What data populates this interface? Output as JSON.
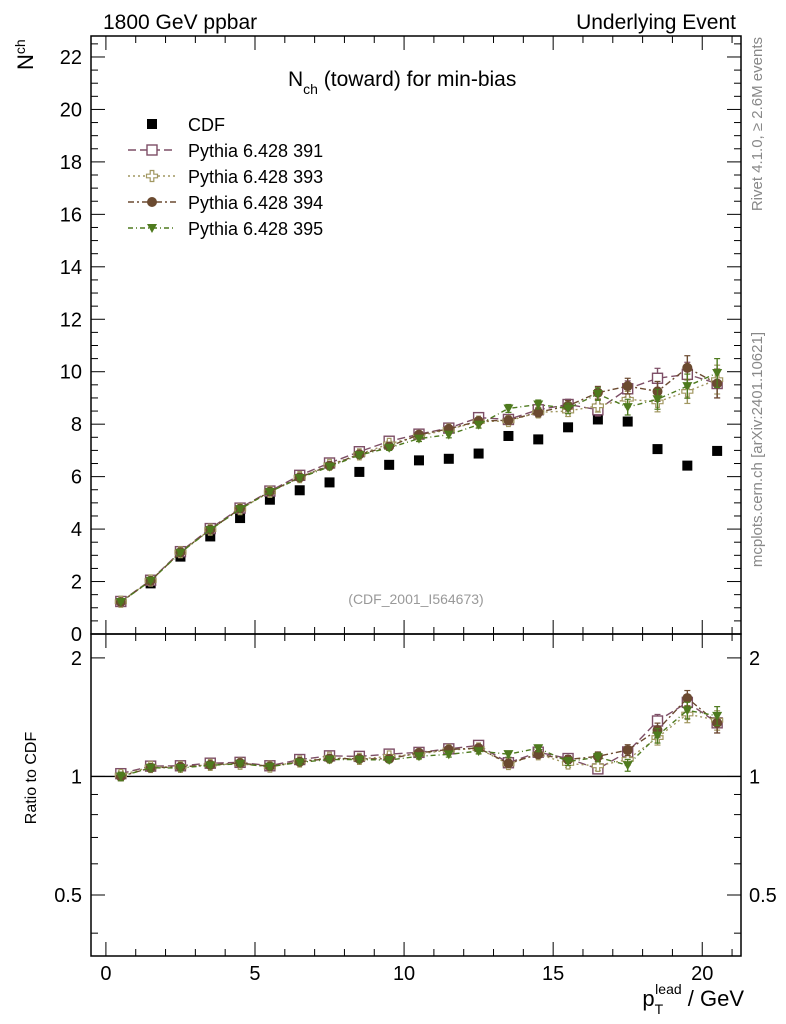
{
  "header": {
    "left": "1800 GeV ppbar",
    "right": "Underlying Event"
  },
  "side_labels": {
    "rivet": "Rivet 4.1.0, ≥ 2.6M events",
    "mcplots": "mcplots.cern.ch [arXiv:2401.10621]"
  },
  "chart_data": {
    "type": "scatter",
    "title_main": "N",
    "title_sub": "ch",
    "title_rest": " (toward) for min-bias",
    "watermark": "(CDF_2001_I564673)",
    "xlabel_main": "p",
    "xlabel_sub": "T",
    "xlabel_sup": "lead",
    "xlabel_rest": " / GeV",
    "ylabel_main": "N",
    "ylabel_sub": "ch",
    "ratio_ylabel": "Ratio to CDF",
    "xlim": [
      -0.5,
      21.3
    ],
    "ylim": [
      0,
      22.8
    ],
    "ratio_ylim": [
      0.35,
      2.3
    ],
    "x_ticks": [
      0,
      5,
      10,
      15,
      20
    ],
    "x_tick_labels": [
      "0",
      "5",
      "10",
      "15",
      "20"
    ],
    "y_ticks": [
      0,
      2,
      4,
      6,
      8,
      10,
      12,
      14,
      16,
      18,
      20,
      22
    ],
    "y_tick_labels": [
      "0",
      "2",
      "4",
      "6",
      "8",
      "10",
      "12",
      "14",
      "16",
      "18",
      "20",
      "22"
    ],
    "ratio_ticks": [
      0.5,
      1,
      2
    ],
    "ratio_tick_labels": [
      "0.5",
      "1",
      "2"
    ],
    "x": [
      0.5,
      1.5,
      2.5,
      3.5,
      4.5,
      5.5,
      6.5,
      7.5,
      8.5,
      9.5,
      10.5,
      11.5,
      12.5,
      13.5,
      14.5,
      15.5,
      16.5,
      17.5,
      18.5,
      19.5,
      20.5
    ],
    "data": {
      "name": "CDF",
      "color": "#000000",
      "values": [
        1.22,
        1.93,
        2.95,
        3.72,
        4.42,
        5.12,
        5.48,
        5.78,
        6.18,
        6.45,
        6.62,
        6.68,
        6.88,
        7.55,
        7.42,
        7.88,
        8.18,
        8.1,
        7.05,
        6.42,
        6.98
      ]
    },
    "series": [
      {
        "name": "Pythia 6.428 391",
        "color": "#7d4e66",
        "marker": "open-square",
        "dash": "8,4",
        "values": [
          1.24,
          2.05,
          3.14,
          4.02,
          4.8,
          5.45,
          6.05,
          6.52,
          6.95,
          7.35,
          7.62,
          7.85,
          8.25,
          8.18,
          8.55,
          8.75,
          8.55,
          9.35,
          9.75,
          9.9,
          9.55
        ],
        "errors": [
          0.03,
          0.04,
          0.05,
          0.05,
          0.06,
          0.07,
          0.08,
          0.09,
          0.1,
          0.1,
          0.11,
          0.12,
          0.13,
          0.15,
          0.17,
          0.2,
          0.24,
          0.3,
          0.38,
          0.46,
          0.55
        ]
      },
      {
        "name": "Pythia 6.428 393",
        "color": "#a19760",
        "marker": "open-cross",
        "dash": "2,3",
        "values": [
          1.23,
          2.04,
          3.12,
          3.98,
          4.76,
          5.42,
          5.98,
          6.45,
          6.85,
          7.25,
          7.55,
          7.8,
          8.1,
          8.12,
          8.45,
          8.5,
          8.7,
          8.95,
          8.85,
          9.25,
          9.7
        ],
        "errors": [
          0.03,
          0.04,
          0.05,
          0.05,
          0.06,
          0.07,
          0.08,
          0.09,
          0.1,
          0.1,
          0.11,
          0.12,
          0.13,
          0.15,
          0.17,
          0.2,
          0.24,
          0.3,
          0.38,
          0.46,
          0.55
        ]
      },
      {
        "name": "Pythia 6.428 394",
        "color": "#6b4a30",
        "marker": "filled-circle",
        "dash": "6,3,2,3",
        "values": [
          1.22,
          2.03,
          3.12,
          3.98,
          4.78,
          5.43,
          5.97,
          6.42,
          6.85,
          7.15,
          7.6,
          7.82,
          8.12,
          8.15,
          8.45,
          8.7,
          9.2,
          9.45,
          9.25,
          10.15,
          9.55
        ],
        "errors": [
          0.03,
          0.04,
          0.05,
          0.05,
          0.06,
          0.07,
          0.08,
          0.09,
          0.1,
          0.1,
          0.11,
          0.12,
          0.13,
          0.15,
          0.17,
          0.2,
          0.24,
          0.3,
          0.38,
          0.46,
          0.55
        ]
      },
      {
        "name": "Pythia 6.428 395",
        "color": "#4e7a1e",
        "marker": "filled-triangle-down",
        "dash": "5,3,1,3",
        "values": [
          1.22,
          2.03,
          3.1,
          3.97,
          4.76,
          5.42,
          5.95,
          6.38,
          6.82,
          7.1,
          7.45,
          7.6,
          7.98,
          8.6,
          8.75,
          8.6,
          9.15,
          8.65,
          8.95,
          9.45,
          9.95
        ],
        "errors": [
          0.03,
          0.04,
          0.05,
          0.05,
          0.06,
          0.07,
          0.08,
          0.09,
          0.1,
          0.1,
          0.11,
          0.12,
          0.13,
          0.15,
          0.17,
          0.2,
          0.24,
          0.3,
          0.38,
          0.46,
          0.55
        ]
      }
    ]
  }
}
